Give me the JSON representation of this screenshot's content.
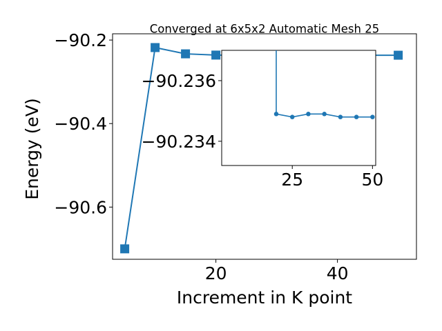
{
  "chart_data": [
    {
      "type": "line",
      "title": "Converged at 6x5x2 Automatic Mesh 25",
      "xlabel": "Increment in K point",
      "ylabel": "Energy (eV)",
      "xlim": [
        3,
        53
      ],
      "ylim": [
        -90.725,
        -90.185
      ],
      "xticks": [
        20,
        40
      ],
      "xtick_labels": [
        "20",
        "40"
      ],
      "yticks": [
        -90.6,
        -90.4,
        -90.2
      ],
      "ytick_labels": [
        "−90.6",
        "−90.4",
        "−90.2"
      ],
      "marker": "square",
      "color": "#1f77b4",
      "grid": false,
      "series": [
        {
          "x": [
            5,
            10,
            15,
            20,
            25,
            30,
            35,
            40,
            45,
            50
          ],
          "y": [
            -90.7,
            -90.218,
            -90.233,
            -90.236,
            -90.2362,
            -90.2363,
            -90.2363,
            -90.2363,
            -90.2363,
            -90.2363
          ]
        }
      ]
    },
    {
      "type": "line",
      "title": "",
      "xlabel": "",
      "ylabel": "",
      "xlim": [
        3,
        51
      ],
      "ylim": [
        -90.2332,
        -90.237
      ],
      "xticks": [
        25,
        50
      ],
      "xtick_labels": [
        "25",
        "50"
      ],
      "yticks": [
        -90.236,
        -90.234
      ],
      "ytick_labels": [
        "−90.236",
        "−90.234"
      ],
      "marker": "circle",
      "color": "#1f77b4",
      "grid": false,
      "series": [
        {
          "x": [
            20,
            25,
            30,
            35,
            40,
            45,
            50
          ],
          "y": [
            -90.2349,
            -90.2348,
            -90.2349,
            -90.2349,
            -90.2348,
            -90.2348,
            -90.2348
          ]
        }
      ]
    }
  ]
}
